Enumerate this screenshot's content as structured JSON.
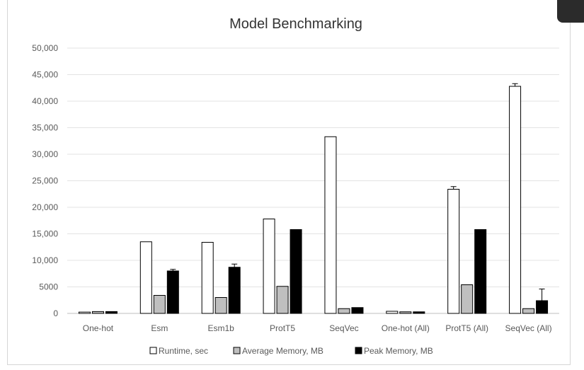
{
  "chart_data": {
    "type": "bar",
    "title": "Model Benchmarking",
    "xlabel": "",
    "ylabel": "",
    "categories": [
      "One-hot",
      "Esm",
      "Esm1b",
      "ProtT5",
      "SeqVec",
      "One-hot (All)",
      "ProtT5 (All)",
      "SeqVec (All)"
    ],
    "series": [
      {
        "name": "Runtime, sec",
        "color": "#ffffff",
        "values": [
          250,
          13500,
          13400,
          17800,
          33300,
          400,
          23400,
          42800
        ],
        "errors": [
          0,
          0,
          0,
          0,
          0,
          0,
          500,
          500
        ]
      },
      {
        "name": "Average Memory, MB",
        "color": "#bfbfbf",
        "values": [
          350,
          3400,
          3000,
          5100,
          900,
          300,
          5400,
          900
        ],
        "errors": [
          0,
          0,
          0,
          0,
          0,
          0,
          0,
          0
        ]
      },
      {
        "name": "Peak Memory, MB",
        "color": "#000000",
        "values": [
          350,
          8000,
          8700,
          15800,
          1100,
          300,
          15800,
          2400
        ],
        "errors": [
          0,
          300,
          600,
          0,
          0,
          0,
          0,
          2200
        ]
      }
    ],
    "y_ticks": [
      "0",
      "5000",
      "10,000",
      "15,000",
      "20,000",
      "25,000",
      "30,000",
      "35,000",
      "40,000",
      "45,000",
      "50,000"
    ],
    "ylim": [
      0,
      50000
    ],
    "grid": true,
    "legend_position": "bottom"
  }
}
